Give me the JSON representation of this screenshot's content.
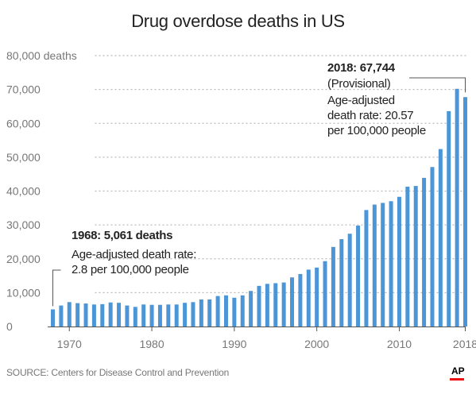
{
  "title": "Drug overdose deaths in US",
  "source": "SOURCE: Centers for Disease Control and Prevention",
  "logo": "AP",
  "colors": {
    "bar": "#4c96d7",
    "grid": "#b8b8b8",
    "text": "#222222",
    "tick": "#777777",
    "logo_accent": "#e11111"
  },
  "annotations": {
    "early": {
      "headline": "1968: 5,061 deaths",
      "line1": "Age-adjusted death rate:",
      "line2": "2.8 per 100,000 people"
    },
    "late": {
      "headline": "2018: 67,744",
      "line1": "(Provisional)",
      "line2": "Age-adjusted",
      "line3": "death rate: 20.57",
      "line4": "per 100,000 people"
    }
  },
  "chart_data": {
    "type": "bar",
    "title": "Drug overdose deaths in US",
    "xlabel": "",
    "ylabel": "",
    "ylim": [
      0,
      80000
    ],
    "yticks": [
      0,
      10000,
      20000,
      30000,
      40000,
      50000,
      60000,
      70000,
      80000
    ],
    "ytick_labels": [
      "0",
      "10,000",
      "20,000",
      "30,000",
      "40,000",
      "50,000",
      "60,000",
      "70,000",
      "80,000 deaths"
    ],
    "xticks": [
      1970,
      1980,
      1990,
      2000,
      2010,
      2018
    ],
    "xtick_labels": [
      "1970",
      "1980",
      "1990",
      "2000",
      "2010",
      "2018"
    ],
    "grid": true,
    "categories": [
      1968,
      1969,
      1970,
      1971,
      1972,
      1973,
      1974,
      1975,
      1976,
      1977,
      1978,
      1979,
      1980,
      1981,
      1982,
      1983,
      1984,
      1985,
      1986,
      1987,
      1988,
      1989,
      1990,
      1991,
      1992,
      1993,
      1994,
      1995,
      1996,
      1997,
      1998,
      1999,
      2000,
      2001,
      2002,
      2003,
      2004,
      2005,
      2006,
      2007,
      2008,
      2009,
      2010,
      2011,
      2012,
      2013,
      2014,
      2015,
      2016,
      2017,
      2018
    ],
    "values": [
      5061,
      6200,
      7200,
      6900,
      6800,
      6500,
      6600,
      7100,
      7000,
      6200,
      5800,
      6500,
      6400,
      6400,
      6500,
      6500,
      7000,
      7200,
      8000,
      8000,
      9000,
      9200,
      8500,
      9200,
      10500,
      12000,
      12600,
      12800,
      13000,
      14500,
      15500,
      16800,
      17400,
      19300,
      23500,
      25800,
      27400,
      29800,
      34400,
      36000,
      36500,
      37000,
      38300,
      41300,
      41500,
      43900,
      47100,
      52400,
      63600,
      70200,
      67744
    ]
  }
}
